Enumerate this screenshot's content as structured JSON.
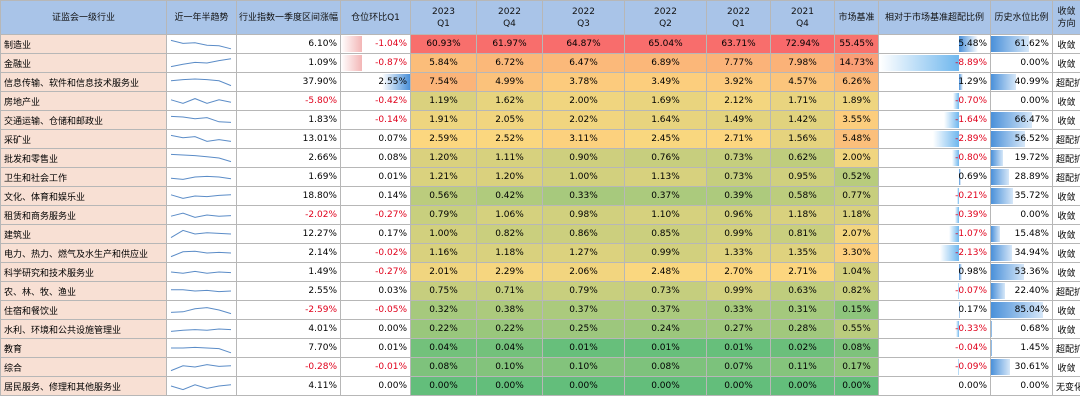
{
  "header": {
    "industry": "证监会一级行业",
    "trend": "近一年半趋势",
    "index_change": "行业指数一季度区间涨幅",
    "position_change": "仓位环比Q1",
    "q": [
      {
        "year": "2023",
        "q": "Q1"
      },
      {
        "year": "2022",
        "q": "Q4"
      },
      {
        "year": "2022",
        "q": "Q3"
      },
      {
        "year": "2022",
        "q": "Q2"
      },
      {
        "year": "2022",
        "q": "Q1"
      },
      {
        "year": "2021",
        "q": "Q4"
      }
    ],
    "benchmark": "市场基准",
    "excess": "相对于市场基准超配比例",
    "hist": "历史水位比例",
    "direction": "收敛方向"
  },
  "colors": {
    "heat_high": "#f8696b",
    "heat_mid": "#fcd77f",
    "heat_low": "#63be7b",
    "bar_pos": "#4a90d9",
    "neg_text": "#e0001b"
  },
  "rows": [
    {
      "industry": "制造业",
      "trend": [
        0.8,
        0.55,
        0.6,
        0.4,
        0.35,
        0.1
      ],
      "idx": "6.10%",
      "idx_v": 6.1,
      "pos": "-1.04%",
      "pos_v": -1.04,
      "q": [
        "60.93%",
        "61.97%",
        "64.87%",
        "65.04%",
        "63.71%",
        "72.94%"
      ],
      "qv": [
        60.93,
        61.97,
        64.87,
        65.04,
        63.71,
        72.94
      ],
      "bench": "55.45%",
      "bench_v": 55.45,
      "excess": "5.48%",
      "excess_v": 5.48,
      "hist": "61.62%",
      "hist_v": 61.62,
      "dir": "收敛"
    },
    {
      "industry": "金融业",
      "trend": [
        0.2,
        0.4,
        0.55,
        0.5,
        0.7,
        0.85
      ],
      "idx": "1.09%",
      "idx_v": 1.09,
      "pos": "-0.87%",
      "pos_v": -0.87,
      "q": [
        "5.84%",
        "6.72%",
        "6.47%",
        "6.89%",
        "7.77%",
        "7.98%"
      ],
      "qv": [
        5.84,
        6.72,
        6.47,
        6.89,
        7.77,
        7.98
      ],
      "bench": "14.73%",
      "bench_v": 14.73,
      "excess": "-8.89%",
      "excess_v": -8.89,
      "hist": "0.00%",
      "hist_v": 0.0,
      "dir": "收敛"
    },
    {
      "industry": "信息传输、软件和信息技术服务业",
      "trend": [
        0.6,
        0.7,
        0.75,
        0.7,
        0.6,
        0.2
      ],
      "idx": "37.90%",
      "idx_v": 37.9,
      "pos": "2.55%",
      "pos_v": 2.55,
      "q": [
        "7.54%",
        "4.99%",
        "3.78%",
        "3.49%",
        "3.92%",
        "4.57%"
      ],
      "qv": [
        7.54,
        4.99,
        3.78,
        3.49,
        3.92,
        4.57
      ],
      "bench": "6.26%",
      "bench_v": 6.26,
      "excess": "1.29%",
      "excess_v": 1.29,
      "hist": "40.99%",
      "hist_v": 40.99,
      "dir": "超配扩大"
    },
    {
      "industry": "房地产业",
      "trend": [
        0.6,
        0.3,
        0.7,
        0.3,
        0.6,
        0.4
      ],
      "idx": "-5.80%",
      "idx_v": -5.8,
      "pos": "-0.42%",
      "pos_v": -0.42,
      "q": [
        "1.19%",
        "1.62%",
        "2.00%",
        "1.69%",
        "2.12%",
        "1.71%"
      ],
      "qv": [
        1.19,
        1.62,
        2.0,
        1.69,
        2.12,
        1.71
      ],
      "bench": "1.89%",
      "bench_v": 1.89,
      "excess": "-0.70%",
      "excess_v": -0.7,
      "hist": "0.00%",
      "hist_v": 0.0,
      "dir": "收敛"
    },
    {
      "industry": "交通运输、仓储和邮政业",
      "trend": [
        0.8,
        0.75,
        0.6,
        0.7,
        0.35,
        0.3
      ],
      "idx": "1.83%",
      "idx_v": 1.83,
      "pos": "-0.14%",
      "pos_v": -0.14,
      "q": [
        "1.91%",
        "2.05%",
        "2.02%",
        "1.64%",
        "1.49%",
        "1.42%"
      ],
      "qv": [
        1.91,
        2.05,
        2.02,
        1.64,
        1.49,
        1.42
      ],
      "bench": "3.55%",
      "bench_v": 3.55,
      "excess": "-1.64%",
      "excess_v": -1.64,
      "hist": "66.47%",
      "hist_v": 66.47,
      "dir": "收敛"
    },
    {
      "industry": "采矿业",
      "trend": [
        0.8,
        0.6,
        0.7,
        0.3,
        0.45,
        0.3
      ],
      "idx": "13.01%",
      "idx_v": 13.01,
      "pos": "0.07%",
      "pos_v": 0.07,
      "q": [
        "2.59%",
        "2.52%",
        "3.11%",
        "2.45%",
        "2.71%",
        "1.56%"
      ],
      "qv": [
        2.59,
        2.52,
        3.11,
        2.45,
        2.71,
        1.56
      ],
      "bench": "5.48%",
      "bench_v": 5.48,
      "excess": "-2.89%",
      "excess_v": -2.89,
      "hist": "56.52%",
      "hist_v": 56.52,
      "dir": "超配扩大"
    },
    {
      "industry": "批发和零售业",
      "trend": [
        0.8,
        0.75,
        0.7,
        0.6,
        0.5,
        0.2
      ],
      "idx": "2.66%",
      "idx_v": 2.66,
      "pos": "0.08%",
      "pos_v": 0.08,
      "q": [
        "1.20%",
        "1.11%",
        "0.90%",
        "0.76%",
        "0.73%",
        "0.62%"
      ],
      "qv": [
        1.2,
        1.11,
        0.9,
        0.76,
        0.73,
        0.62
      ],
      "bench": "2.00%",
      "bench_v": 2.0,
      "excess": "-0.80%",
      "excess_v": -0.8,
      "hist": "19.72%",
      "hist_v": 19.72,
      "dir": "超配扩大"
    },
    {
      "industry": "卫生和社会工作",
      "trend": [
        0.4,
        0.3,
        0.5,
        0.55,
        0.5,
        0.35
      ],
      "idx": "1.69%",
      "idx_v": 1.69,
      "pos": "0.01%",
      "pos_v": 0.01,
      "q": [
        "1.21%",
        "1.20%",
        "1.00%",
        "1.13%",
        "0.73%",
        "0.95%"
      ],
      "qv": [
        1.21,
        1.2,
        1.0,
        1.13,
        0.73,
        0.95
      ],
      "bench": "0.52%",
      "bench_v": 0.52,
      "excess": "0.69%",
      "excess_v": 0.69,
      "hist": "28.89%",
      "hist_v": 28.89,
      "dir": "超配扩大"
    },
    {
      "industry": "文化、体育和娱乐业",
      "trend": [
        0.6,
        0.3,
        0.5,
        0.45,
        0.55,
        0.6
      ],
      "idx": "18.80%",
      "idx_v": 18.8,
      "pos": "0.14%",
      "pos_v": 0.14,
      "q": [
        "0.56%",
        "0.42%",
        "0.33%",
        "0.37%",
        "0.39%",
        "0.58%"
      ],
      "qv": [
        0.56,
        0.42,
        0.33,
        0.37,
        0.39,
        0.58
      ],
      "bench": "0.77%",
      "bench_v": 0.77,
      "excess": "-0.21%",
      "excess_v": -0.21,
      "hist": "35.72%",
      "hist_v": 35.72,
      "dir": "收敛"
    },
    {
      "industry": "租赁和商务服务业",
      "trend": [
        0.4,
        0.65,
        0.3,
        0.5,
        0.4,
        0.45
      ],
      "idx": "-2.02%",
      "idx_v": -2.02,
      "pos": "-0.27%",
      "pos_v": -0.27,
      "q": [
        "0.79%",
        "1.06%",
        "0.98%",
        "1.10%",
        "0.96%",
        "1.18%"
      ],
      "qv": [
        0.79,
        1.06,
        0.98,
        1.1,
        0.96,
        1.18
      ],
      "bench": "1.18%",
      "bench_v": 1.18,
      "excess": "-0.39%",
      "excess_v": -0.39,
      "hist": "0.00%",
      "hist_v": 0.0,
      "dir": "收敛"
    },
    {
      "industry": "建筑业",
      "trend": [
        0.2,
        0.8,
        0.5,
        0.6,
        0.55,
        0.5
      ],
      "idx": "12.27%",
      "idx_v": 12.27,
      "pos": "0.17%",
      "pos_v": 0.17,
      "q": [
        "1.00%",
        "0.82%",
        "0.86%",
        "0.85%",
        "0.99%",
        "0.81%"
      ],
      "qv": [
        1.0,
        0.82,
        0.86,
        0.85,
        0.99,
        0.81
      ],
      "bench": "2.07%",
      "bench_v": 2.07,
      "excess": "-1.07%",
      "excess_v": -1.07,
      "hist": "15.48%",
      "hist_v": 15.48,
      "dir": "收敛"
    },
    {
      "industry": "电力、热力、燃气及水生产和供应业",
      "trend": [
        0.2,
        0.6,
        0.65,
        0.5,
        0.55,
        0.5
      ],
      "idx": "2.14%",
      "idx_v": 2.14,
      "pos": "-0.02%",
      "pos_v": -0.02,
      "q": [
        "1.16%",
        "1.18%",
        "1.27%",
        "0.99%",
        "1.33%",
        "1.35%"
      ],
      "qv": [
        1.16,
        1.18,
        1.27,
        0.99,
        1.33,
        1.35
      ],
      "bench": "3.30%",
      "bench_v": 3.3,
      "excess": "-2.13%",
      "excess_v": -2.13,
      "hist": "34.94%",
      "hist_v": 34.94,
      "dir": "收敛"
    },
    {
      "industry": "科学研究和技术服务业",
      "trend": [
        0.5,
        0.4,
        0.55,
        0.4,
        0.5,
        0.45
      ],
      "idx": "1.49%",
      "idx_v": 1.49,
      "pos": "-0.27%",
      "pos_v": -0.27,
      "q": [
        "2.01%",
        "2.29%",
        "2.06%",
        "2.48%",
        "2.70%",
        "2.71%"
      ],
      "qv": [
        2.01,
        2.29,
        2.06,
        2.48,
        2.7,
        2.71
      ],
      "bench": "1.04%",
      "bench_v": 1.04,
      "excess": "0.98%",
      "excess_v": 0.98,
      "hist": "53.36%",
      "hist_v": 53.36,
      "dir": "收敛"
    },
    {
      "industry": "农、林、牧、渔业",
      "trend": [
        0.6,
        0.6,
        0.5,
        0.55,
        0.45,
        0.5
      ],
      "idx": "2.55%",
      "idx_v": 2.55,
      "pos": "0.03%",
      "pos_v": 0.03,
      "q": [
        "0.75%",
        "0.71%",
        "0.79%",
        "0.73%",
        "0.99%",
        "0.63%"
      ],
      "qv": [
        0.75,
        0.71,
        0.79,
        0.73,
        0.99,
        0.63
      ],
      "bench": "0.82%",
      "bench_v": 0.82,
      "excess": "-0.07%",
      "excess_v": -0.07,
      "hist": "22.40%",
      "hist_v": 22.4,
      "dir": "超配扩大"
    },
    {
      "industry": "住宿和餐饮业",
      "trend": [
        0.3,
        0.35,
        0.6,
        0.7,
        0.5,
        0.2
      ],
      "idx": "-2.59%",
      "idx_v": -2.59,
      "pos": "-0.05%",
      "pos_v": -0.05,
      "q": [
        "0.32%",
        "0.38%",
        "0.37%",
        "0.37%",
        "0.33%",
        "0.31%"
      ],
      "qv": [
        0.32,
        0.38,
        0.37,
        0.37,
        0.33,
        0.31
      ],
      "bench": "0.15%",
      "bench_v": 0.15,
      "excess": "0.17%",
      "excess_v": 0.17,
      "hist": "85.04%",
      "hist_v": 85.04,
      "dir": "收敛"
    },
    {
      "industry": "水利、环境和公共设施管理业",
      "trend": [
        0.3,
        0.4,
        0.45,
        0.4,
        0.5,
        0.45
      ],
      "idx": "4.01%",
      "idx_v": 4.01,
      "pos": "0.00%",
      "pos_v": 0.0,
      "q": [
        "0.22%",
        "0.22%",
        "0.25%",
        "0.24%",
        "0.27%",
        "0.28%"
      ],
      "qv": [
        0.22,
        0.22,
        0.25,
        0.24,
        0.27,
        0.28
      ],
      "bench": "0.55%",
      "bench_v": 0.55,
      "excess": "-0.33%",
      "excess_v": -0.33,
      "hist": "0.68%",
      "hist_v": 0.68,
      "dir": "收敛"
    },
    {
      "industry": "教育",
      "trend": [
        0.5,
        0.5,
        0.55,
        0.5,
        0.45,
        0.1
      ],
      "idx": "7.70%",
      "idx_v": 7.7,
      "pos": "0.01%",
      "pos_v": 0.01,
      "q": [
        "0.04%",
        "0.04%",
        "0.01%",
        "0.01%",
        "0.01%",
        "0.02%"
      ],
      "qv": [
        0.04,
        0.04,
        0.01,
        0.01,
        0.01,
        0.02
      ],
      "bench": "0.08%",
      "bench_v": 0.08,
      "excess": "-0.04%",
      "excess_v": -0.04,
      "hist": "1.45%",
      "hist_v": 1.45,
      "dir": "超配扩大"
    },
    {
      "industry": "综合",
      "trend": [
        0.2,
        0.6,
        0.5,
        0.7,
        0.55,
        0.6
      ],
      "idx": "-0.28%",
      "idx_v": -0.28,
      "pos": "-0.01%",
      "pos_v": -0.01,
      "q": [
        "0.08%",
        "0.10%",
        "0.10%",
        "0.08%",
        "0.07%",
        "0.11%"
      ],
      "qv": [
        0.08,
        0.1,
        0.1,
        0.08,
        0.07,
        0.11
      ],
      "bench": "0.17%",
      "bench_v": 0.17,
      "excess": "-0.09%",
      "excess_v": -0.09,
      "hist": "30.61%",
      "hist_v": 30.61,
      "dir": "收敛"
    },
    {
      "industry": "居民服务、修理和其他服务业",
      "trend": [
        0.5,
        0.2,
        0.6,
        0.3,
        0.5,
        0.6
      ],
      "idx": "4.11%",
      "idx_v": 4.11,
      "pos": "0.00%",
      "pos_v": 0.0,
      "q": [
        "0.00%",
        "0.00%",
        "0.00%",
        "0.00%",
        "0.00%",
        "0.00%"
      ],
      "qv": [
        0,
        0,
        0,
        0,
        0,
        0
      ],
      "bench": "0.00%",
      "bench_v": 0.0,
      "excess": "0.00%",
      "excess_v": 0.0,
      "hist": "0.00%",
      "hist_v": 0.0,
      "dir": "无变化"
    }
  ]
}
